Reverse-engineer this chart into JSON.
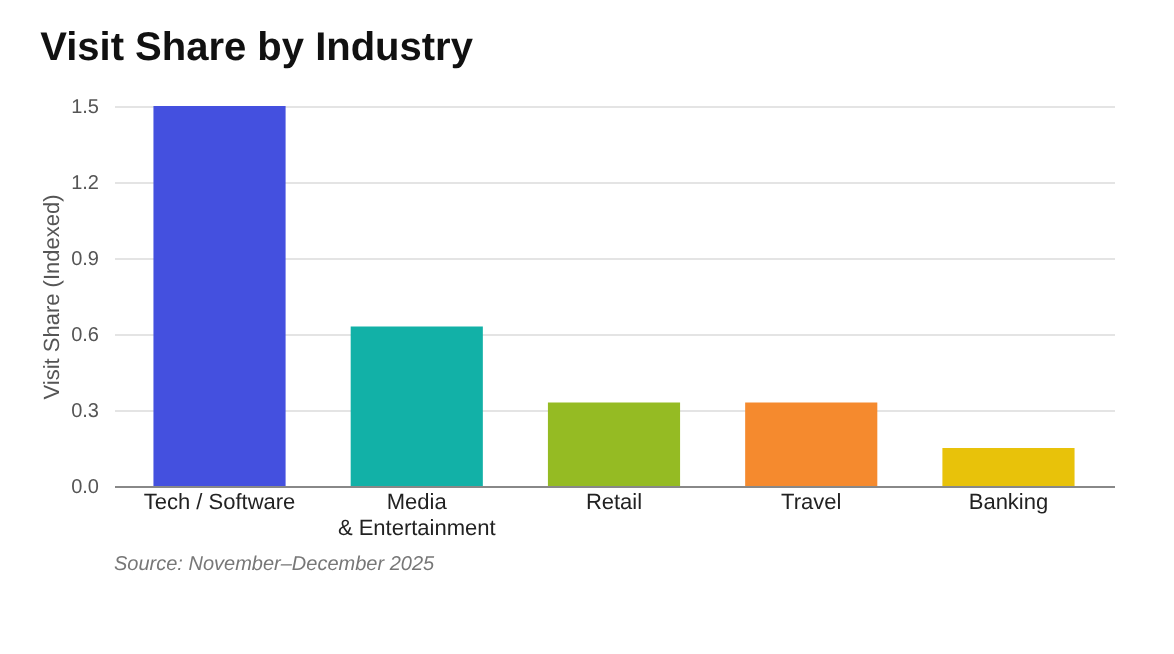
{
  "chart_data": {
    "type": "bar",
    "title": "Visit Share by Industry",
    "ylabel": "Visit Share (Indexed)",
    "categories": [
      "Tech / Software",
      "Media\n& Entertainment",
      "Retail",
      "Travel",
      "Banking"
    ],
    "values": [
      1.5,
      0.63,
      0.33,
      0.33,
      0.15
    ],
    "colors": [
      "#4450df",
      "#12b1a7",
      "#95bb23",
      "#f58a2e",
      "#e8c20a"
    ],
    "ylim": [
      0,
      1.5
    ],
    "yticks": [
      {
        "value": 0,
        "label": "0.0"
      },
      0.3,
      0.6,
      0.9,
      1.2,
      1.5
    ],
    "grid": "y",
    "annotations": [
      "Source: November–December 2025"
    ]
  }
}
